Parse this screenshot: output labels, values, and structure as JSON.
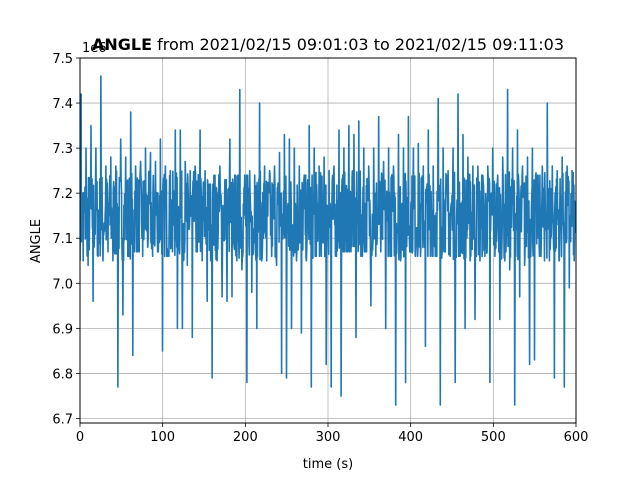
{
  "chart_data": {
    "type": "line",
    "title_bold": "ANGLE",
    "title_rest": " from 2021/02/15 09:01:03 to 2021/02/15 09:11:03",
    "xlabel": "time (s)",
    "ylabel": "ANGLE",
    "offset_label": "1e6",
    "xlim": [
      0,
      600
    ],
    "ylim": [
      6.69,
      7.5
    ],
    "x_ticks": [
      0,
      100,
      200,
      300,
      400,
      500,
      600
    ],
    "y_ticks": [
      6.7,
      6.8,
      6.9,
      7.0,
      7.1,
      7.2,
      7.3,
      7.4,
      7.5
    ],
    "grid": true,
    "series_color": "#1f77b4",
    "series": [
      {
        "name": "",
        "x": [
          0,
          6,
          12,
          18,
          24,
          30,
          36,
          42,
          48,
          54,
          60,
          66,
          72,
          78,
          84,
          90,
          96,
          102,
          108,
          114,
          120,
          126,
          132,
          138,
          144,
          150,
          156,
          162,
          168,
          174,
          180,
          186,
          192,
          198,
          204,
          210,
          216,
          222,
          228,
          234,
          240,
          246,
          252,
          258,
          264,
          270,
          276,
          282,
          288,
          294,
          300,
          306,
          312,
          318,
          324,
          330,
          336,
          342,
          348,
          354,
          360,
          366,
          372,
          378,
          384,
          390,
          396,
          402,
          408,
          414,
          420,
          426,
          432,
          438,
          444,
          450,
          456,
          462,
          468,
          474,
          480,
          486,
          492,
          498,
          504,
          510,
          516,
          522,
          528,
          534,
          540,
          546,
          552,
          558,
          564,
          570,
          576,
          582,
          588,
          594,
          600
        ],
        "min": [
          7.05,
          7.04,
          6.96,
          7.06,
          7.05,
          7.07,
          7.05,
          6.77,
          6.93,
          7.06,
          6.84,
          7.07,
          7.06,
          7.08,
          7.06,
          7.07,
          6.85,
          7.06,
          7.07,
          6.9,
          6.9,
          7.04,
          6.88,
          7.07,
          7.05,
          6.96,
          6.79,
          7.05,
          6.97,
          6.96,
          6.97,
          7.05,
          7.03,
          6.78,
          6.98,
          6.9,
          7.05,
          7.05,
          7.06,
          7.04,
          6.8,
          6.79,
          6.9,
          7.05,
          6.89,
          7.05,
          6.77,
          7.06,
          7.06,
          6.82,
          6.77,
          7.06,
          6.75,
          7.07,
          7.07,
          6.88,
          7.06,
          7.07,
          6.95,
          7.06,
          7.07,
          6.9,
          7.06,
          6.73,
          7.05,
          6.78,
          7.07,
          7.06,
          7.06,
          6.86,
          7.06,
          7.06,
          6.73,
          7.07,
          7.06,
          6.78,
          7.06,
          6.9,
          7.05,
          6.92,
          7.05,
          7.06,
          6.78,
          7.06,
          6.92,
          7.05,
          7.03,
          6.73,
          6.97,
          7.04,
          6.82,
          6.83,
          7.06,
          7.05,
          7.05,
          6.79,
          7.05,
          6.77,
          6.99,
          7.05,
          7.04
        ],
        "max": [
          7.42,
          7.3,
          7.35,
          7.3,
          7.46,
          7.26,
          7.28,
          7.26,
          7.32,
          7.28,
          7.38,
          7.26,
          7.27,
          7.3,
          7.29,
          7.27,
          7.32,
          7.26,
          7.25,
          7.34,
          7.34,
          7.27,
          7.25,
          7.26,
          7.34,
          7.25,
          7.22,
          7.24,
          7.26,
          7.23,
          7.32,
          7.24,
          7.43,
          7.24,
          7.25,
          7.24,
          7.4,
          7.26,
          7.25,
          7.26,
          7.29,
          7.33,
          7.32,
          7.3,
          7.26,
          7.24,
          7.35,
          7.3,
          7.26,
          7.28,
          7.25,
          7.26,
          7.34,
          7.3,
          7.35,
          7.33,
          7.36,
          7.3,
          7.26,
          7.3,
          7.37,
          7.27,
          7.3,
          7.26,
          7.33,
          7.3,
          7.37,
          7.3,
          7.31,
          7.26,
          7.34,
          7.26,
          7.41,
          7.3,
          7.25,
          7.3,
          7.42,
          7.33,
          7.28,
          7.26,
          7.26,
          7.24,
          7.26,
          7.3,
          7.24,
          7.28,
          7.43,
          7.3,
          7.34,
          7.26,
          7.28,
          7.3,
          7.24,
          7.26,
          7.4,
          7.26,
          7.25,
          7.28,
          7.26,
          7.25,
          7.26
        ]
      }
    ]
  }
}
